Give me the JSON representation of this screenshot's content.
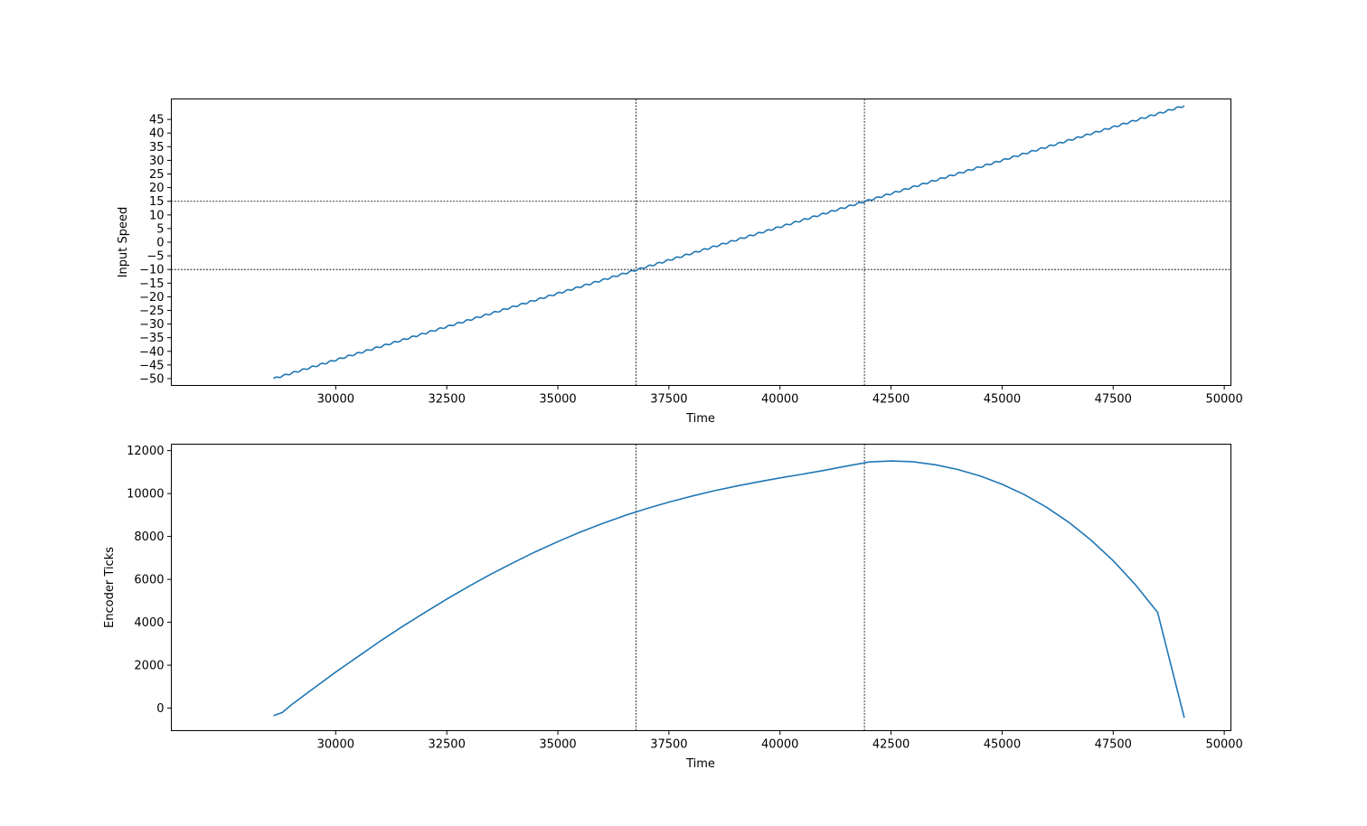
{
  "colors": {
    "series": "#1f77b4",
    "reference_line": "#000000",
    "axes": "#000000",
    "background": "#ffffff"
  },
  "chart_data": [
    {
      "type": "line",
      "title": "",
      "xlabel": "Time",
      "ylabel": "Input Speed",
      "xlim": [
        26300,
        50150
      ],
      "ylim": [
        -52.5,
        52.5
      ],
      "x_ticks": [
        30000,
        32500,
        35000,
        37500,
        40000,
        42500,
        45000,
        47500,
        50000
      ],
      "x_tick_labels": [
        "30000",
        "32500",
        "35000",
        "37500",
        "40000",
        "42500",
        "45000",
        "47500",
        "50000"
      ],
      "y_ticks": [
        -50,
        -45,
        -40,
        -35,
        -30,
        -25,
        -20,
        -15,
        -10,
        -5,
        0,
        5,
        10,
        15,
        20,
        25,
        30,
        35,
        40,
        45
      ],
      "y_tick_labels": [
        "−50",
        "−45",
        "−40",
        "−35",
        "−30",
        "−25",
        "−20",
        "−15",
        "−10",
        "−5",
        "0",
        "5",
        "10",
        "15",
        "20",
        "25",
        "30",
        "35",
        "40",
        "45"
      ],
      "grid": false,
      "reference_lines": {
        "vertical": [
          36760,
          41900
        ],
        "horizontal": [
          -10,
          15
        ]
      },
      "series": [
        {
          "x_start": 28600,
          "x_end": 49100,
          "y_start": -50,
          "y_end": 50,
          "step_count": 100,
          "ripple_amplitude": 0.3,
          "points": [
            [
              28600,
              -50
            ],
            [
              36760,
              -10
            ],
            [
              41900,
              15
            ],
            [
              49100,
              50
            ]
          ]
        }
      ]
    },
    {
      "type": "line",
      "title": "",
      "xlabel": "Time",
      "ylabel": "Encoder Ticks",
      "xlim": [
        26300,
        50150
      ],
      "ylim": [
        -1050,
        12300
      ],
      "x_ticks": [
        30000,
        32500,
        35000,
        37500,
        40000,
        42500,
        45000,
        47500,
        50000
      ],
      "x_tick_labels": [
        "30000",
        "32500",
        "35000",
        "37500",
        "40000",
        "42500",
        "45000",
        "47500",
        "50000"
      ],
      "y_ticks": [
        0,
        2000,
        4000,
        6000,
        8000,
        10000,
        12000
      ],
      "y_tick_labels": [
        "0",
        "2000",
        "4000",
        "6000",
        "8000",
        "10000",
        "12000"
      ],
      "grid": false,
      "reference_lines": {
        "vertical": [
          36760,
          41900
        ],
        "horizontal": []
      },
      "series": [
        {
          "points": [
            [
              28600,
              -350
            ],
            [
              28800,
              -200
            ],
            [
              29000,
              150
            ],
            [
              29500,
              920
            ],
            [
              30000,
              1680
            ],
            [
              30500,
              2400
            ],
            [
              31000,
              3120
            ],
            [
              31500,
              3800
            ],
            [
              32000,
              4450
            ],
            [
              32500,
              5080
            ],
            [
              33000,
              5680
            ],
            [
              33500,
              6250
            ],
            [
              34000,
              6780
            ],
            [
              34500,
              7290
            ],
            [
              35000,
              7760
            ],
            [
              35500,
              8200
            ],
            [
              36000,
              8600
            ],
            [
              36500,
              8970
            ],
            [
              36760,
              9140
            ],
            [
              37000,
              9300
            ],
            [
              37500,
              9600
            ],
            [
              38000,
              9870
            ],
            [
              38500,
              10120
            ],
            [
              39000,
              10340
            ],
            [
              39500,
              10540
            ],
            [
              40000,
              10730
            ],
            [
              40500,
              10900
            ],
            [
              41000,
              11080
            ],
            [
              41500,
              11280
            ],
            [
              41900,
              11430
            ],
            [
              42000,
              11470
            ],
            [
              42500,
              11520
            ],
            [
              43000,
              11480
            ],
            [
              43500,
              11340
            ],
            [
              44000,
              11120
            ],
            [
              44500,
              10820
            ],
            [
              45000,
              10430
            ],
            [
              45500,
              9950
            ],
            [
              46000,
              9360
            ],
            [
              46500,
              8660
            ],
            [
              47000,
              7830
            ],
            [
              47500,
              6870
            ],
            [
              48000,
              5750
            ],
            [
              48500,
              4460
            ],
            [
              49100,
              -450
            ]
          ]
        }
      ]
    }
  ]
}
